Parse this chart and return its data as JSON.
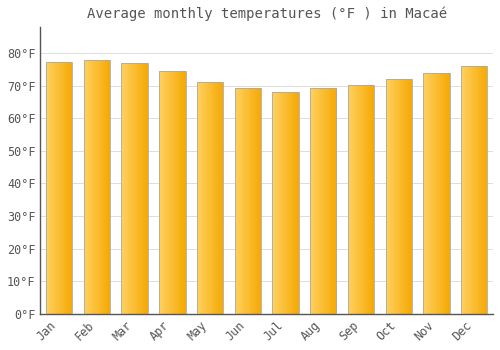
{
  "title": "Average monthly temperatures (°F ) in Macaé",
  "months": [
    "Jan",
    "Feb",
    "Mar",
    "Apr",
    "May",
    "Jun",
    "Jul",
    "Aug",
    "Sep",
    "Oct",
    "Nov",
    "Dec"
  ],
  "values": [
    77.2,
    77.9,
    77.0,
    74.3,
    71.1,
    69.1,
    68.0,
    69.1,
    70.2,
    72.1,
    73.9,
    75.9
  ],
  "bar_color_dark": "#F5A800",
  "bar_color_light": "#FFD060",
  "bar_edge_color": "#AAAAAA",
  "background_color": "#FFFFFF",
  "grid_color": "#DDDDDD",
  "text_color": "#555555",
  "ylim": [
    0,
    88
  ],
  "yticks": [
    0,
    10,
    20,
    30,
    40,
    50,
    60,
    70,
    80
  ],
  "title_fontsize": 10,
  "tick_fontsize": 8.5
}
